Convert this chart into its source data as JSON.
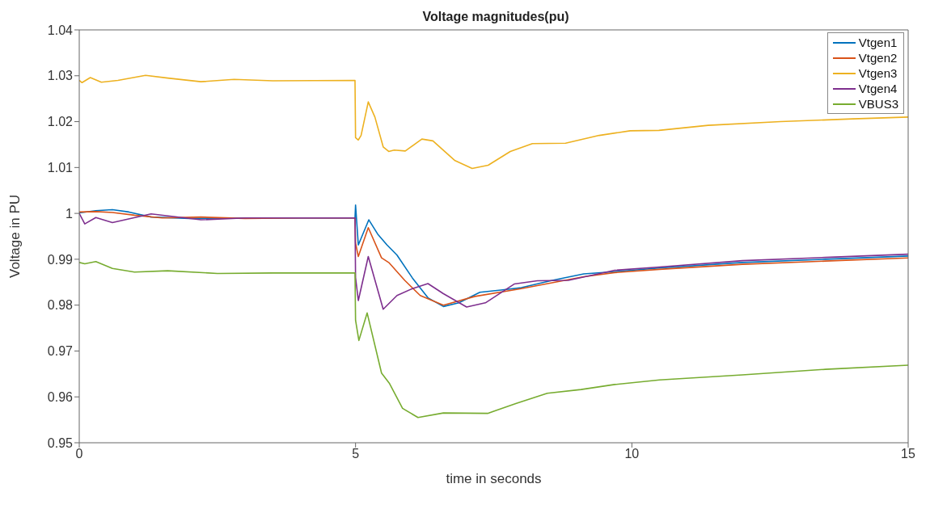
{
  "chart_data": {
    "type": "line",
    "title": "Voltage magnitudes(pu)",
    "xlabel": "time in seconds",
    "ylabel": "Voltage in PU",
    "xlim": [
      0,
      15
    ],
    "xticks": [
      0,
      5,
      10,
      15
    ],
    "ylim": [
      0.95,
      1.04
    ],
    "yticks": [
      0.95,
      0.96,
      0.97,
      0.98,
      0.99,
      1,
      1.01,
      1.02,
      1.03,
      1.04
    ],
    "grid": false,
    "legend": "top right",
    "marker": "none",
    "line_style": "solid",
    "series": [
      {
        "name": "Vtgen1",
        "color": "#0072bd",
        "x": [
          0,
          0.3,
          0.6,
          0.9,
          1.3,
          2,
          3,
          4,
          4.99,
          5,
          5.05,
          5.24,
          5.4,
          5.57,
          5.75,
          6.03,
          6.31,
          6.59,
          6.87,
          7.25,
          7.63,
          8,
          8.56,
          9.13,
          9.69,
          10.5,
          12,
          13.5,
          15
        ],
        "values": [
          1.0001,
          1.0006,
          1.0008,
          1.0003,
          0.9992,
          0.9989,
          0.999,
          0.999,
          0.999,
          1.0018,
          0.9931,
          0.9986,
          0.9955,
          0.9931,
          0.9909,
          0.9859,
          0.9816,
          0.9797,
          0.9805,
          0.9828,
          0.9833,
          0.9838,
          0.9854,
          0.9868,
          0.9873,
          0.9881,
          0.9893,
          0.99,
          0.9907
        ]
      },
      {
        "name": "Vtgen2",
        "color": "#d95319",
        "x": [
          0,
          0.3,
          0.6,
          1,
          1.5,
          2.2,
          3,
          4,
          4.99,
          5,
          5.05,
          5.23,
          5.47,
          5.61,
          5.89,
          6.17,
          6.59,
          7.16,
          8,
          9.13,
          9.69,
          10.5,
          12,
          13.5,
          15
        ],
        "values": [
          1.0003,
          1.0004,
          1.0002,
          0.9996,
          0.999,
          0.9992,
          0.9989,
          0.999,
          0.999,
          0.9935,
          0.9906,
          0.9969,
          0.9903,
          0.9892,
          0.9854,
          0.9821,
          0.98,
          0.9819,
          0.9836,
          0.9862,
          0.9871,
          0.9878,
          0.9889,
          0.9896,
          0.9903
        ]
      },
      {
        "name": "Vtgen3",
        "color": "#edb120",
        "x": [
          0,
          0.05,
          0.2,
          0.4,
          0.7,
          1.2,
          1.6,
          2.2,
          2.8,
          3.5,
          4.99,
          5,
          5.05,
          5.1,
          5.23,
          5.35,
          5.5,
          5.6,
          5.7,
          5.9,
          6.2,
          6.4,
          6.8,
          7.11,
          7.4,
          7.8,
          8.2,
          8.8,
          9.41,
          9.97,
          10.49,
          11.38,
          12.69,
          14,
          15
        ],
        "values": [
          1.029,
          1.0285,
          1.0296,
          1.0286,
          1.029,
          1.0301,
          1.0295,
          1.0287,
          1.0292,
          1.0289,
          1.029,
          1.0165,
          1.016,
          1.017,
          1.0243,
          1.021,
          1.0145,
          1.0135,
          1.0138,
          1.0136,
          1.0162,
          1.0158,
          1.0115,
          1.0098,
          1.0105,
          1.0135,
          1.0152,
          1.0153,
          1.017,
          1.018,
          1.0181,
          1.0192,
          1.02,
          1.0206,
          1.021
        ]
      },
      {
        "name": "Vtgen4",
        "color": "#7e2f8e",
        "x": [
          0,
          0.1,
          0.3,
          0.6,
          1.3,
          2.2,
          3,
          4,
          4.99,
          5,
          5.05,
          5.23,
          5.5,
          5.75,
          6.03,
          6.31,
          6.59,
          7.01,
          7.35,
          7.87,
          8.29,
          8.85,
          9.69,
          10.5,
          12,
          13.5,
          15
        ],
        "values": [
          1,
          0.9977,
          0.9991,
          0.998,
          0.9999,
          0.9986,
          0.999,
          0.999,
          0.999,
          0.986,
          0.981,
          0.9906,
          0.9791,
          0.9821,
          0.9836,
          0.9847,
          0.9825,
          0.9796,
          0.9805,
          0.9846,
          0.9853,
          0.9854,
          0.9876,
          0.9883,
          0.9897,
          0.9904,
          0.9911
        ]
      },
      {
        "name": "VBUS3",
        "color": "#77ac30",
        "x": [
          0,
          0.1,
          0.3,
          0.6,
          1,
          1.6,
          2.5,
          3.5,
          4.99,
          5,
          5.06,
          5.21,
          5.47,
          5.61,
          5.85,
          6.13,
          6.59,
          7.39,
          7.91,
          8.47,
          9.08,
          9.69,
          10.5,
          12,
          13.5,
          15
        ],
        "values": [
          0.9893,
          0.989,
          0.9895,
          0.988,
          0.9872,
          0.9875,
          0.9869,
          0.987,
          0.987,
          0.9767,
          0.9723,
          0.9783,
          0.9652,
          0.963,
          0.9575,
          0.9555,
          0.9565,
          0.9564,
          0.9586,
          0.9608,
          0.9616,
          0.9627,
          0.9637,
          0.9648,
          0.966,
          0.9669
        ]
      }
    ]
  }
}
